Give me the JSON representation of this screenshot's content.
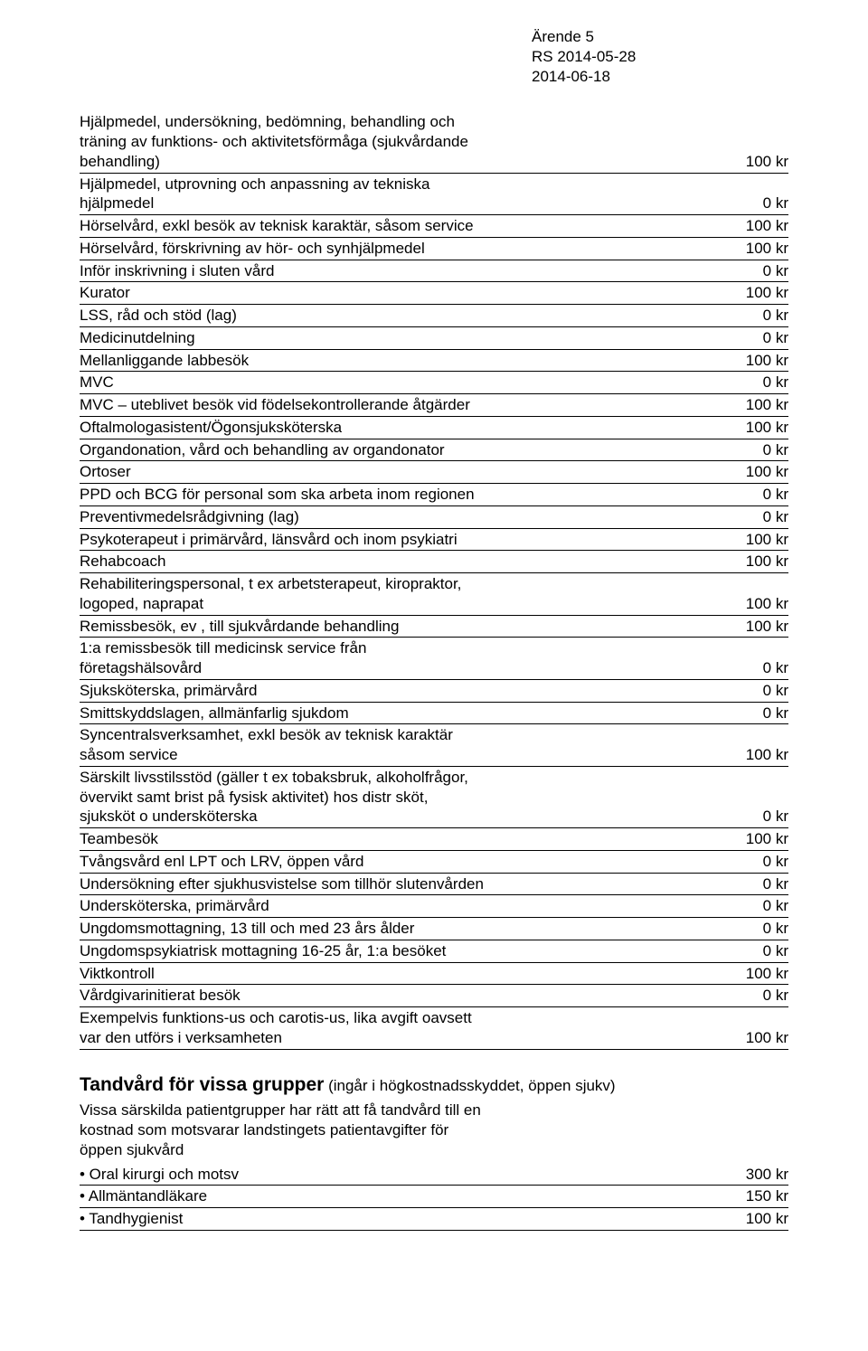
{
  "header": {
    "line1": "Ärende 5",
    "line2": "RS 2014-05-28",
    "line3": "2014-06-18"
  },
  "fees": [
    {
      "label": "Hjälpmedel, undersökning, bedömning, behandling och\nträning av funktions- och aktivitetsförmåga (sjukvårdande\nbehandling)",
      "value": "100 kr"
    },
    {
      "label": "Hjälpmedel, utprovning och anpassning av tekniska\nhjälpmedel",
      "value": "0 kr"
    },
    {
      "label": "Hörselvård, exkl besök av teknisk karaktär, såsom service",
      "value": "100 kr"
    },
    {
      "label": "Hörselvård, förskrivning av hör- och synhjälpmedel",
      "value": "100 kr"
    },
    {
      "label": "Inför inskrivning i sluten vård",
      "value": "0 kr"
    },
    {
      "label": "Kurator",
      "value": "100 kr"
    },
    {
      "label": "LSS, råd och stöd (lag)",
      "value": "0 kr"
    },
    {
      "label": "Medicinutdelning",
      "value": "0 kr"
    },
    {
      "label": "Mellanliggande labbesök",
      "value": "100 kr"
    },
    {
      "label": "MVC",
      "value": "0 kr"
    },
    {
      "label": "MVC – uteblivet besök vid födelsekontrollerande åtgärder",
      "value": "100 kr"
    },
    {
      "label": "Oftalmologasistent/Ögonsjuksköterska",
      "value": "100 kr"
    },
    {
      "label": "Organdonation, vård och behandling av organdonator",
      "value": "0 kr"
    },
    {
      "label": "Ortoser",
      "value": "100 kr"
    },
    {
      "label": "PPD och BCG för personal som ska arbeta inom regionen",
      "value": "0 kr"
    },
    {
      "label": "Preventivmedelsrådgivning (lag)",
      "value": "0 kr"
    },
    {
      "label": "Psykoterapeut i primärvård, länsvård och inom psykiatri",
      "value": "100 kr"
    },
    {
      "label": "Rehabcoach",
      "value": "100 kr"
    },
    {
      "label": "Rehabiliteringspersonal, t ex arbetsterapeut, kiropraktor,\nlogoped, naprapat",
      "value": "100 kr"
    },
    {
      "label": "Remissbesök, ev , till sjukvårdande behandling",
      "value": "100 kr"
    },
    {
      "label": "1:a remissbesök till medicinsk service från\nföretagshälsovård",
      "value": "0 kr"
    },
    {
      "label": "Sjuksköterska, primärvård",
      "value": "0 kr"
    },
    {
      "label": "Smittskyddslagen, allmänfarlig sjukdom",
      "value": "0 kr"
    },
    {
      "label": "Syncentralsverksamhet, exkl besök av teknisk karaktär\nsåsom service",
      "value": "100 kr"
    },
    {
      "label": "Särskilt livsstilsstöd (gäller t ex tobaksbruk, alkoholfrågor,\növervikt samt brist på fysisk aktivitet) hos distr sköt,\nsjuksköt o undersköterska",
      "value": "0 kr"
    },
    {
      "label": "Teambesök",
      "value": "100 kr"
    },
    {
      "label": "Tvångsvård enl LPT och LRV, öppen vård",
      "value": "0 kr"
    },
    {
      "label": "Undersökning efter sjukhusvistelse som tillhör slutenvården",
      "value": "0 kr"
    },
    {
      "label": "Undersköterska, primärvård",
      "value": "0 kr"
    },
    {
      "label": "Ungdomsmottagning, 13 till och med 23 års ålder",
      "value": "0 kr"
    },
    {
      "label": "Ungdomspsykiatrisk mottagning 16-25 år, 1:a besöket",
      "value": "0 kr"
    },
    {
      "label": "Viktkontroll",
      "value": "100 kr"
    },
    {
      "label": "Vårdgivarinitierat besök",
      "value": "0 kr"
    },
    {
      "label": "Exempelvis funktions-us och carotis-us, lika avgift oavsett\nvar den utförs i verksamheten",
      "value": "100 kr"
    }
  ],
  "section2": {
    "title_bold": "Tandvård för vissa grupper",
    "title_rest": " (ingår i högkostnadsskyddet, öppen sjukv)",
    "intro": "Vissa särskilda patientgrupper har rätt att få tandvård till en\nkostnad som motsvarar landstingets patientavgifter för\nöppen sjukvård",
    "rows": [
      {
        "label": " • Oral kirurgi och motsv",
        "value": "300 kr"
      },
      {
        "label": " • Allmäntandläkare",
        "value": "150 kr"
      },
      {
        "label": " • Tandhygienist",
        "value": "100 kr"
      }
    ]
  }
}
